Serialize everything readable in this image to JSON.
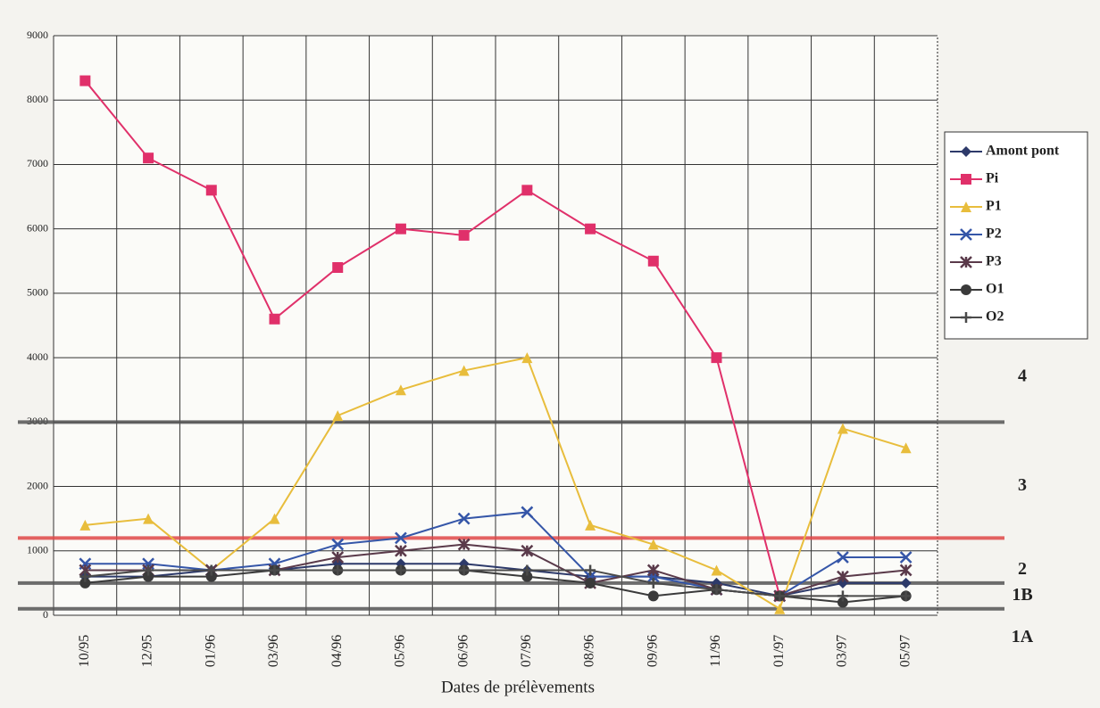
{
  "chart_data": {
    "type": "line",
    "x_label": "Dates de prélèvements",
    "categories": [
      "10/95",
      "12/95",
      "01/96",
      "03/96",
      "04/96",
      "05/96",
      "06/96",
      "07/96",
      "08/96",
      "09/96",
      "11/96",
      "01/97",
      "03/97",
      "05/97"
    ],
    "series": [
      {
        "name": "Amont pont",
        "color": "#2d3a6a",
        "marker": "diamond",
        "values": [
          600,
          600,
          700,
          700,
          800,
          800,
          800,
          700,
          600,
          600,
          500,
          300,
          500,
          500
        ]
      },
      {
        "name": "Pi",
        "color": "#e0306a",
        "marker": "square",
        "values": [
          8300,
          7100,
          6600,
          4600,
          5400,
          6000,
          5900,
          6600,
          6000,
          5500,
          4000,
          300,
          null,
          null
        ]
      },
      {
        "name": "P1",
        "color": "#e8bd3c",
        "marker": "triangle",
        "values": [
          1400,
          1500,
          700,
          1500,
          3100,
          3500,
          3800,
          4000,
          1400,
          1100,
          700,
          100,
          2900,
          2600
        ]
      },
      {
        "name": "P2",
        "color": "#3556a8",
        "marker": "x",
        "values": [
          800,
          800,
          700,
          800,
          1100,
          1200,
          1500,
          1600,
          600,
          600,
          400,
          300,
          900,
          900
        ]
      },
      {
        "name": "P3",
        "color": "#5a3a4a",
        "marker": "asterisk",
        "values": [
          700,
          700,
          700,
          700,
          900,
          1000,
          1100,
          1000,
          500,
          700,
          400,
          300,
          600,
          700
        ]
      },
      {
        "name": "O1",
        "color": "#3a3a3a",
        "marker": "circle",
        "values": [
          500,
          600,
          600,
          700,
          700,
          700,
          700,
          600,
          500,
          300,
          400,
          300,
          200,
          300
        ]
      },
      {
        "name": "O2",
        "color": "#4a4a4a",
        "marker": "plus",
        "values": [
          600,
          700,
          700,
          700,
          700,
          700,
          700,
          700,
          700,
          500,
          400,
          300,
          300,
          300
        ]
      }
    ],
    "ylim": [
      0,
      9000
    ],
    "yticks": [
      0,
      1000,
      2000,
      3000,
      4000,
      5000,
      6000,
      7000,
      8000,
      9000
    ],
    "grid": true,
    "reference_lines": [
      {
        "value": 3000,
        "color": "#555555"
      },
      {
        "value": 1200,
        "color": "#e04848"
      },
      {
        "value": 500,
        "color": "#555555"
      },
      {
        "value": 100,
        "color": "#555555"
      }
    ],
    "zone_labels": [
      {
        "label": "4",
        "value": 3700
      },
      {
        "label": "3",
        "value": 2000
      },
      {
        "label": "2",
        "value": 700
      },
      {
        "label": "1B",
        "value": 300
      },
      {
        "label": "1A",
        "value": -350
      }
    ],
    "legend": "right"
  }
}
